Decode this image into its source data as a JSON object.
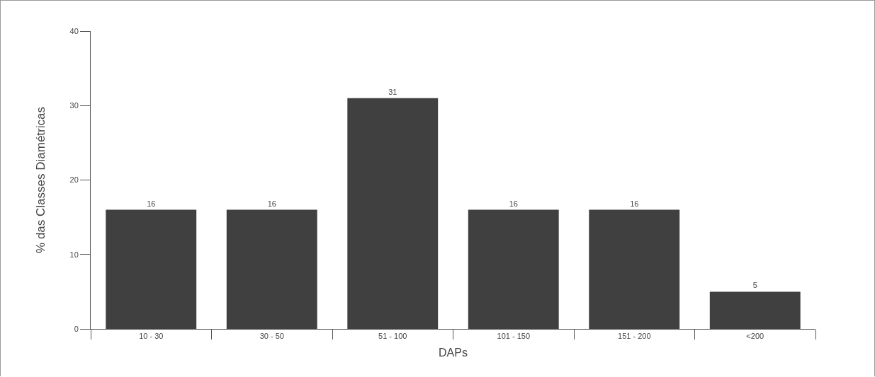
{
  "chart_data": {
    "type": "bar",
    "xlabel": "DAPs",
    "ylabel": "% das Classes Diamétricas",
    "categories": [
      "10 - 30",
      "30 - 50",
      "51 - 100",
      "101 - 150",
      "151 - 200",
      "<200"
    ],
    "values": [
      16,
      16,
      31,
      16,
      16,
      5
    ],
    "color": "#404040",
    "data_labels": true,
    "ylim": [
      0,
      40
    ],
    "yticks": [
      0,
      10,
      20,
      30,
      40
    ],
    "grid": false,
    "legend": false
  }
}
